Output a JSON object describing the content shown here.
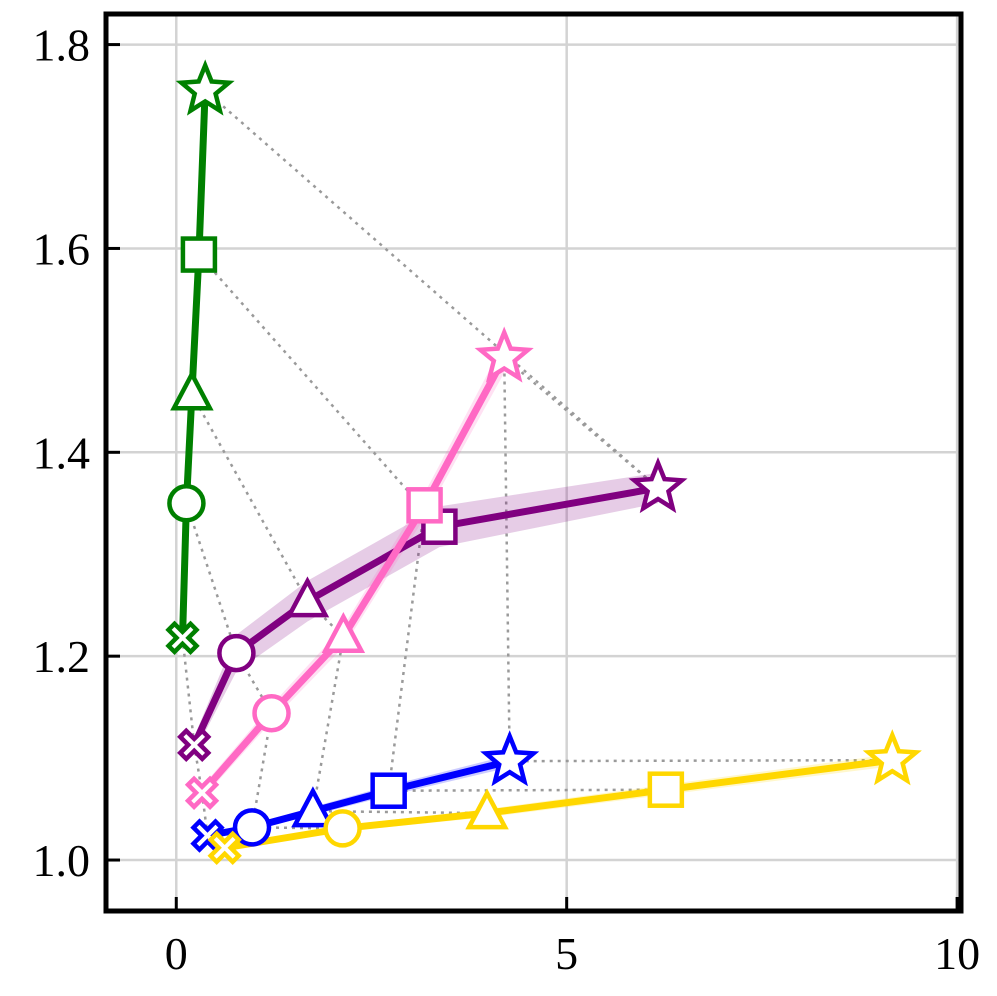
{
  "chart_data": {
    "type": "line",
    "title": "",
    "xlabel": "",
    "ylabel": "",
    "xlim": [
      -0.9,
      10.05
    ],
    "ylim": [
      0.95,
      1.83
    ],
    "xticks": [
      0,
      5,
      10
    ],
    "yticks": [
      1.0,
      1.2,
      1.4,
      1.6,
      1.8
    ],
    "xtick_labels": [
      "0",
      "5",
      "10"
    ],
    "ytick_labels": [
      "1.0",
      "1.2",
      "1.4",
      "1.6",
      "1.8"
    ],
    "grid": true,
    "markers_order": [
      "x",
      "circle",
      "triangle",
      "square",
      "star"
    ],
    "series": [
      {
        "color": "#008000",
        "x": [
          0.08,
          0.13,
          0.2,
          0.29,
          0.37
        ],
        "y": [
          1.218,
          1.35,
          1.457,
          1.594,
          1.755
        ],
        "band": [
          0.003,
          0.003,
          0.003,
          0.003,
          0.003
        ]
      },
      {
        "color": "#800080",
        "x": [
          0.23,
          0.77,
          1.68,
          3.37,
          6.17
        ],
        "y": [
          1.113,
          1.203,
          1.254,
          1.327,
          1.365
        ],
        "band": [
          0.008,
          0.018,
          0.02,
          0.02,
          0.015
        ]
      },
      {
        "color": "#ff69c4",
        "x": [
          0.33,
          1.22,
          2.14,
          3.18,
          4.2
        ],
        "y": [
          1.066,
          1.144,
          1.219,
          1.348,
          1.493
        ],
        "band": [
          0.006,
          0.008,
          0.01,
          0.012,
          0.015
        ]
      },
      {
        "color": "#0000ff",
        "x": [
          0.4,
          0.97,
          1.75,
          2.72,
          4.27
        ],
        "y": [
          1.024,
          1.032,
          1.048,
          1.068,
          1.097
        ],
        "band": [
          0.003,
          0.003,
          0.004,
          0.005,
          0.006
        ]
      },
      {
        "color": "#ffd700",
        "x": [
          0.62,
          2.13,
          3.98,
          6.27,
          9.17
        ],
        "y": [
          1.012,
          1.031,
          1.046,
          1.069,
          1.098
        ],
        "band": [
          0.002,
          0.003,
          0.004,
          0.005,
          0.006
        ]
      }
    ]
  }
}
